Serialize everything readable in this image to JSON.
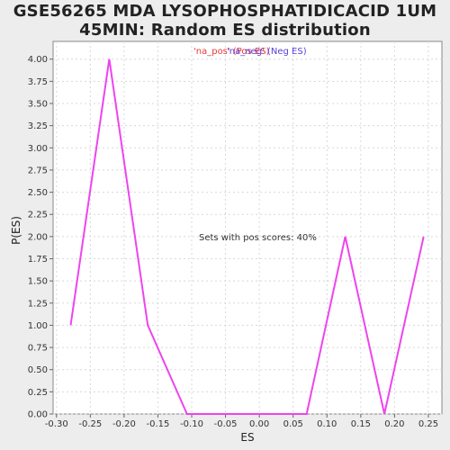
{
  "chart_data": {
    "type": "line",
    "title": "GSE56265 MDA LYSOPHOSPHATIDICACID  1UM 45MIN: Random ES distribution",
    "xlabel": "ES",
    "ylabel": "P(ES)",
    "xlim": [
      -0.305,
      0.27
    ],
    "ylim": [
      0,
      4.2
    ],
    "xticks": [
      "-0.30",
      "-0.25",
      "-0.20",
      "-0.15",
      "-0.10",
      "-0.05",
      "0.00",
      "0.05",
      "0.10",
      "0.15",
      "0.20",
      "0.25"
    ],
    "yticks": [
      "0.00",
      "0.25",
      "0.50",
      "0.75",
      "1.00",
      "1.25",
      "1.50",
      "1.75",
      "2.00",
      "2.25",
      "2.50",
      "2.75",
      "3.00",
      "3.25",
      "3.50",
      "3.75",
      "4.00"
    ],
    "grid": true,
    "legend": [
      {
        "label": "'na_pos' (Pos ES)",
        "color": "#e8383b"
      },
      {
        "label": "'na_neg' (Neg ES)",
        "color": "#5a3fd6"
      }
    ],
    "annotation": "Sets with pos scores: 40%",
    "series": [
      {
        "color": "#ee44ee",
        "x": [
          -0.279,
          -0.222,
          -0.165,
          -0.107,
          -0.05,
          0.008,
          0.07,
          0.127,
          0.185,
          0.243
        ],
        "y": [
          1.0,
          4.0,
          1.0,
          0.0,
          0.0,
          0.0,
          0.0,
          2.0,
          0.0,
          2.0
        ]
      }
    ]
  }
}
